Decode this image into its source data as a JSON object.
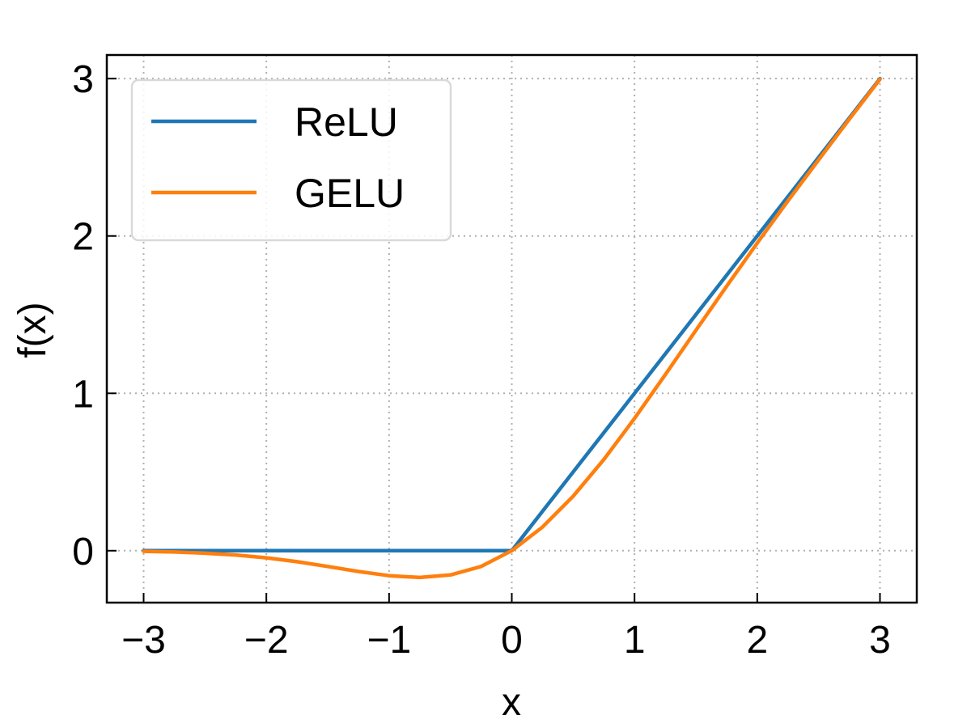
{
  "chart_data": {
    "type": "line",
    "title": "",
    "xlabel": "x",
    "ylabel": "f(x)",
    "xlim": [
      -3.3,
      3.3
    ],
    "ylim": [
      -0.33,
      3.15
    ],
    "xticks": [
      -3,
      -2,
      -1,
      0,
      1,
      2,
      3
    ],
    "xtick_labels": [
      "−3",
      "−2",
      "−1",
      "0",
      "1",
      "2",
      "3"
    ],
    "yticks": [
      0,
      1,
      2,
      3
    ],
    "ytick_labels": [
      "0",
      "1",
      "2",
      "3"
    ],
    "grid": true,
    "legend_position": "top-left",
    "series": [
      {
        "name": "ReLU",
        "color": "#1f77b4",
        "x": [
          -3.0,
          -2.5,
          -2.0,
          -1.5,
          -1.0,
          -0.5,
          0.0,
          0.5,
          1.0,
          1.5,
          2.0,
          2.5,
          3.0
        ],
        "y": [
          0,
          0,
          0,
          0,
          0,
          0,
          0,
          0.5,
          1.0,
          1.5,
          2.0,
          2.5,
          3.0
        ]
      },
      {
        "name": "GELU",
        "color": "#ff7f0e",
        "x": [
          -3.0,
          -2.75,
          -2.5,
          -2.25,
          -2.0,
          -1.75,
          -1.5,
          -1.25,
          -1.0,
          -0.75,
          -0.5,
          -0.25,
          0.0,
          0.25,
          0.5,
          0.75,
          1.0,
          1.25,
          1.5,
          1.75,
          2.0,
          2.25,
          2.5,
          2.75,
          3.0
        ],
        "y": [
          -0.004,
          -0.008,
          -0.016,
          -0.027,
          -0.045,
          -0.07,
          -0.1,
          -0.132,
          -0.159,
          -0.17,
          -0.154,
          -0.1,
          0.0,
          0.15,
          0.346,
          0.58,
          0.841,
          1.118,
          1.4,
          1.68,
          1.955,
          2.223,
          2.484,
          2.742,
          2.996
        ]
      }
    ]
  }
}
